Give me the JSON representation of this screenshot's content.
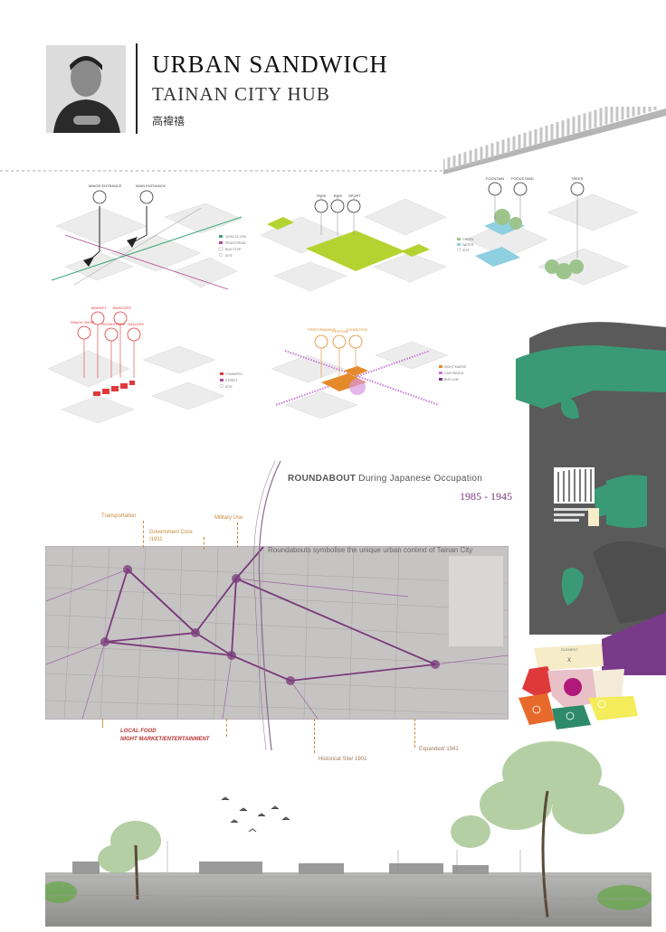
{
  "header": {
    "title": "URBAN SANDWICH",
    "subtitle": "TAINAN CITY HUB",
    "author_name": "高禕禧"
  },
  "diagrams": [
    {
      "id": "access",
      "labels": [
        "MINOR ENTRANCE",
        "MAIN ENTRANCE"
      ],
      "legend": [
        "VEHICLE CIRCULATION",
        "PEDESTRIAN CIRCULATION",
        "BUS STOP",
        "SITE"
      ]
    },
    {
      "id": "green",
      "labels": [
        "PARK",
        "BIKE",
        "SPORT"
      ]
    },
    {
      "id": "water",
      "labels": [
        "FOUNTAIN",
        "FOODSTAND",
        "TREES"
      ],
      "legend": [
        "GREEN",
        "WATER",
        "SITE"
      ]
    },
    {
      "id": "commercial",
      "labels": [
        "MARKET",
        "BAR/CAFE",
        "SNACK SHOP",
        "BOOKSTORE",
        "GALLERY"
      ],
      "legend": [
        "COMMERCIAL",
        "STREET",
        "SITE"
      ]
    },
    {
      "id": "event",
      "labels": [
        "PERFORMANCE",
        "FESTIVAL",
        "EXHIBITION"
      ],
      "legend": [
        "NIGHT MARKET",
        "CAR RENTAL",
        "BUS LINE"
      ]
    }
  ],
  "map": {
    "caption_bold": "ROUNDABOUT",
    "caption_rest": " During Japanese Occupation",
    "years": "1985 - 1945",
    "subtitle": "Roundabouts symbolise the unique urban context of Tainan City",
    "annotations": {
      "transportation": "Transportation",
      "government": "Government Core",
      "government_year": "/1911",
      "military": "Military Use",
      "local_food": "LOCAL FOOD",
      "night_market": "NIGHT MARKET/ENTERTAINMENT",
      "historical": "Historical Site/ 1901",
      "expanded": "Expanded/ 1941"
    }
  },
  "side_panel": {
    "element_label": "ELEMENT",
    "element_value": "X"
  },
  "colors": {
    "accent_purple": "#7a3a7a",
    "annotation_orange": "#c88a3a",
    "green_block": "#3a9a78",
    "dark_block": "#5a5a5a",
    "diagram_red": "#e0393b",
    "diagram_lime": "#b5d330",
    "diagram_orange": "#e48a2a"
  }
}
